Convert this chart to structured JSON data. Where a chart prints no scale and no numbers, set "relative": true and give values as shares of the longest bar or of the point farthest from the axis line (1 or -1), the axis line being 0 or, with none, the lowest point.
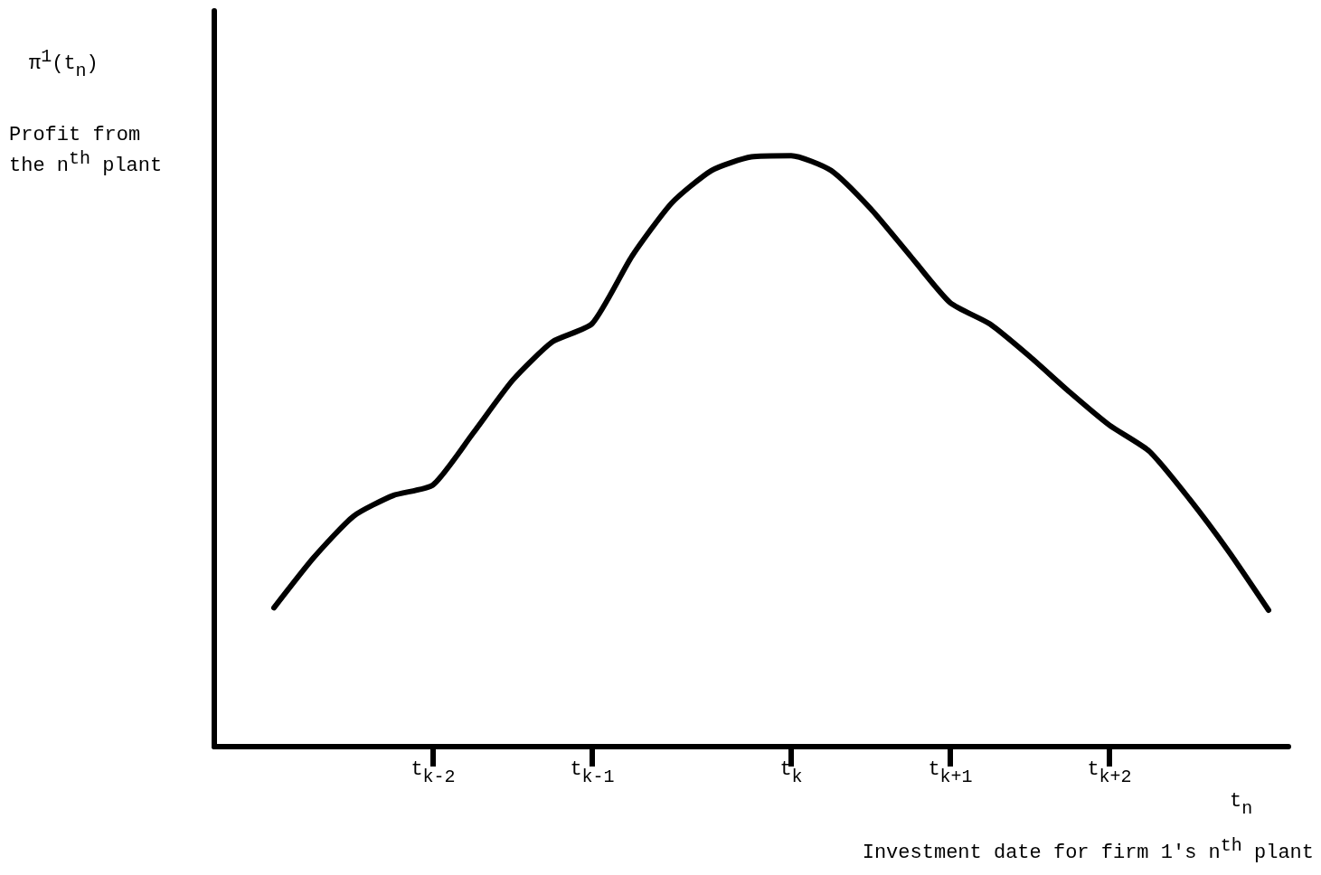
{
  "chart_data": {
    "type": "line",
    "relative": true,
    "ylabel": "Profit from the n$^{th}$ plant",
    "xlabel": "Investment date for firm 1's n$^{th}$ plant",
    "annotations": [
      "π$^{1}$(t$_{n}$)",
      "t$_{n}$"
    ],
    "categories": [
      null,
      null,
      null,
      null,
      null,
      "t$_{k-2}$",
      null,
      null,
      null,
      "t$_{k-1}$",
      null,
      null,
      null,
      null,
      "t$_{k}$",
      null,
      null,
      null,
      "t$_{k+1}$",
      null,
      null,
      null,
      "t$_{k+2}$",
      null,
      null,
      null,
      null
    ],
    "series": [
      {
        "color": "#000000",
        "values": [
          null,
          0.235,
          0.32,
          0.39,
          0.425,
          0.443,
          0.53,
          0.62,
          0.685,
          0.716,
          0.83,
          0.92,
          0.975,
          0.998,
          1,
          0.975,
          0.91,
          0.83,
          0.751,
          0.715,
          0.66,
          0.6,
          0.544,
          0.5,
          0.42,
          0.33,
          0.231
        ]
      }
    ],
    "grid": false,
    "marker": "none",
    "line_style": "solid"
  }
}
